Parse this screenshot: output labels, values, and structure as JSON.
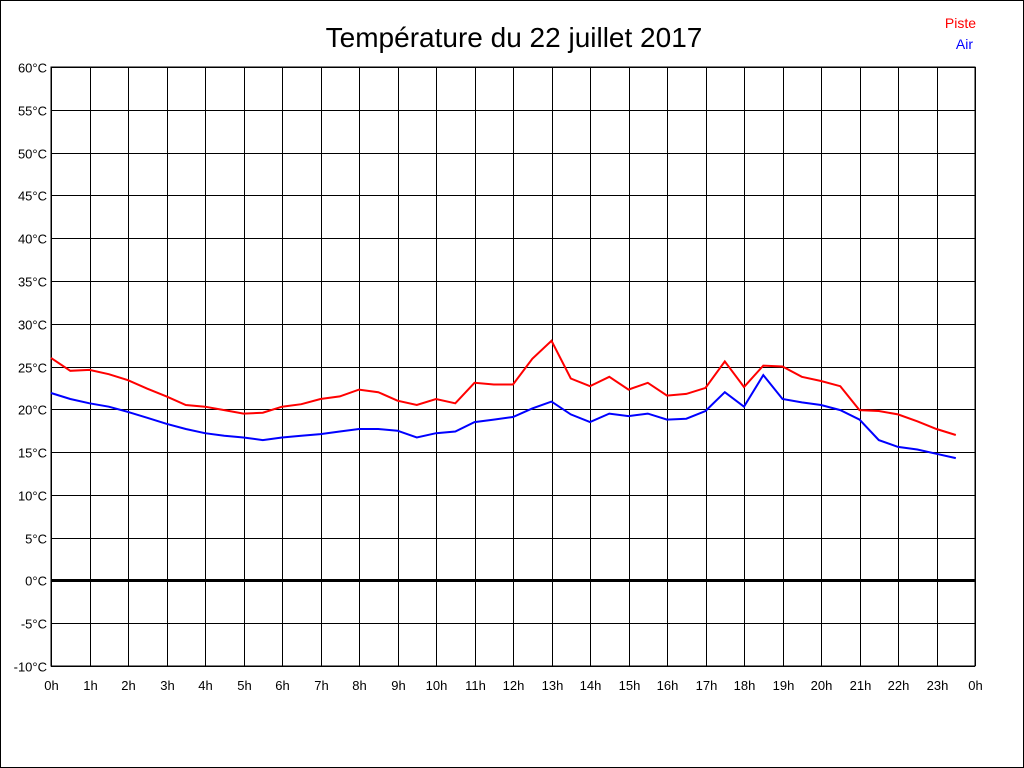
{
  "chart_data": {
    "type": "line",
    "title": "Température du 22 juillet 2017",
    "xlabel": "",
    "ylabel": "",
    "ylim": [
      -10,
      60
    ],
    "xlim": [
      0,
      24
    ],
    "grid": true,
    "legend_placement": "top-right",
    "y_ticks": [
      "60°C",
      "55°C",
      "50°C",
      "45°C",
      "40°C",
      "35°C",
      "30°C",
      "25°C",
      "20°C",
      "15°C",
      "10°C",
      "5°C",
      "0°C",
      "-5°C",
      "-10°C"
    ],
    "y_tick_values": [
      60,
      55,
      50,
      45,
      40,
      35,
      30,
      25,
      20,
      15,
      10,
      5,
      0,
      -5,
      -10
    ],
    "x_ticks": [
      "0h",
      "1h",
      "2h",
      "3h",
      "4h",
      "5h",
      "6h",
      "7h",
      "8h",
      "9h",
      "10h",
      "11h",
      "12h",
      "13h",
      "14h",
      "15h",
      "16h",
      "17h",
      "18h",
      "19h",
      "20h",
      "21h",
      "22h",
      "23h",
      "0h"
    ],
    "x": [
      0,
      0.5,
      1,
      1.5,
      2,
      2.5,
      3,
      3.5,
      4,
      4.5,
      5,
      5.5,
      6,
      6.5,
      7,
      7.5,
      8,
      8.5,
      9,
      9.5,
      10,
      10.5,
      11,
      11.5,
      12,
      12.5,
      13,
      13.5,
      14,
      14.5,
      15,
      15.5,
      16,
      16.5,
      17,
      17.5,
      18,
      18.5,
      19,
      19.5,
      20,
      20.5,
      21,
      21.5,
      22,
      22.5,
      23,
      23.5
    ],
    "series": [
      {
        "name": "Piste",
        "color": "#ff0000",
        "values": [
          26.0,
          24.5,
          24.6,
          24.1,
          23.4,
          22.4,
          21.5,
          20.5,
          20.3,
          19.9,
          19.5,
          19.6,
          20.3,
          20.6,
          21.2,
          21.5,
          22.3,
          22.0,
          21.0,
          20.5,
          21.2,
          20.7,
          23.1,
          22.9,
          22.9,
          25.9,
          28.0,
          23.6,
          22.7,
          23.8,
          22.3,
          23.1,
          21.6,
          21.8,
          22.5,
          25.6,
          22.6,
          25.1,
          25.0,
          23.8,
          23.3,
          22.7,
          19.9,
          19.8,
          19.4,
          18.6,
          17.7,
          17.0
        ]
      },
      {
        "name": "Air",
        "color": "#0000ff",
        "values": [
          21.9,
          21.2,
          20.7,
          20.3,
          19.7,
          19.0,
          18.3,
          17.7,
          17.2,
          16.9,
          16.7,
          16.4,
          16.7,
          16.9,
          17.1,
          17.4,
          17.7,
          17.7,
          17.5,
          16.7,
          17.2,
          17.4,
          18.5,
          18.8,
          19.1,
          20.1,
          20.9,
          19.4,
          18.5,
          19.5,
          19.2,
          19.5,
          18.8,
          18.9,
          19.8,
          22.0,
          20.3,
          24.0,
          21.2,
          20.8,
          20.5,
          19.9,
          18.8,
          16.4,
          15.6,
          15.3,
          14.8,
          14.3
        ]
      }
    ]
  }
}
